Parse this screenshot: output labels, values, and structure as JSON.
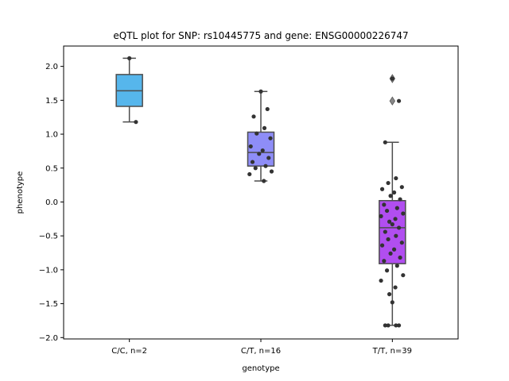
{
  "chart_data": {
    "type": "box",
    "title": "eQTL plot for SNP: rs10445775 and gene: ENSG00000226747",
    "xlabel": "genotype",
    "ylabel": "phenotype",
    "ylim": [
      -2.02,
      2.3
    ],
    "yticks": [
      -2.0,
      -1.5,
      -1.0,
      -0.5,
      0.0,
      0.5,
      1.0,
      1.5,
      2.0
    ],
    "ytick_labels": [
      "−2.0",
      "−1.5",
      "−1.0",
      "−0.5",
      "0.0",
      "0.5",
      "1.0",
      "1.5",
      "2.0"
    ],
    "categories": [
      "C/C, n=2",
      "C/T, n=16",
      "T/T, n=39"
    ],
    "boxes": [
      {
        "category": "C/C, n=2",
        "color": "#56b6ec",
        "q1": 1.41,
        "median": 1.64,
        "q3": 1.88,
        "whisker_low": 1.18,
        "whisker_high": 2.12,
        "outliers": []
      },
      {
        "category": "C/T, n=16",
        "color": "#8e8df7",
        "q1": 0.53,
        "median": 0.73,
        "q3": 1.03,
        "whisker_low": 0.31,
        "whisker_high": 1.63,
        "outliers": []
      },
      {
        "category": "T/T, n=39",
        "color": "#b14ef0",
        "q1": -0.91,
        "median": -0.38,
        "q3": 0.02,
        "whisker_low": -1.82,
        "whisker_high": 0.88,
        "outliers": [
          1.49,
          1.82
        ]
      }
    ],
    "points": [
      {
        "category": "C/C, n=2",
        "values": [
          2.12,
          1.18
        ]
      },
      {
        "category": "C/T, n=16",
        "values": [
          1.63,
          1.37,
          1.26,
          1.09,
          1.01,
          0.94,
          0.82,
          0.76,
          0.71,
          0.65,
          0.59,
          0.53,
          0.5,
          0.45,
          0.41,
          0.31
        ]
      },
      {
        "category": "T/T, n=39",
        "values": [
          1.82,
          1.49,
          0.88,
          0.35,
          0.28,
          0.22,
          0.19,
          0.14,
          0.09,
          0.04,
          -0.04,
          -0.09,
          -0.13,
          -0.17,
          -0.21,
          -0.25,
          -0.29,
          -0.33,
          -0.38,
          -0.44,
          -0.5,
          -0.55,
          -0.6,
          -0.64,
          -0.7,
          -0.76,
          -0.82,
          -0.87,
          -0.94,
          -1.01,
          -1.08,
          -1.16,
          -1.26,
          -1.36,
          -1.48,
          -1.82,
          -1.82,
          -1.82,
          -1.82
        ]
      }
    ],
    "grid": false,
    "colors": {
      "box_edge": "#4d4d4d",
      "point": "#333333"
    }
  }
}
